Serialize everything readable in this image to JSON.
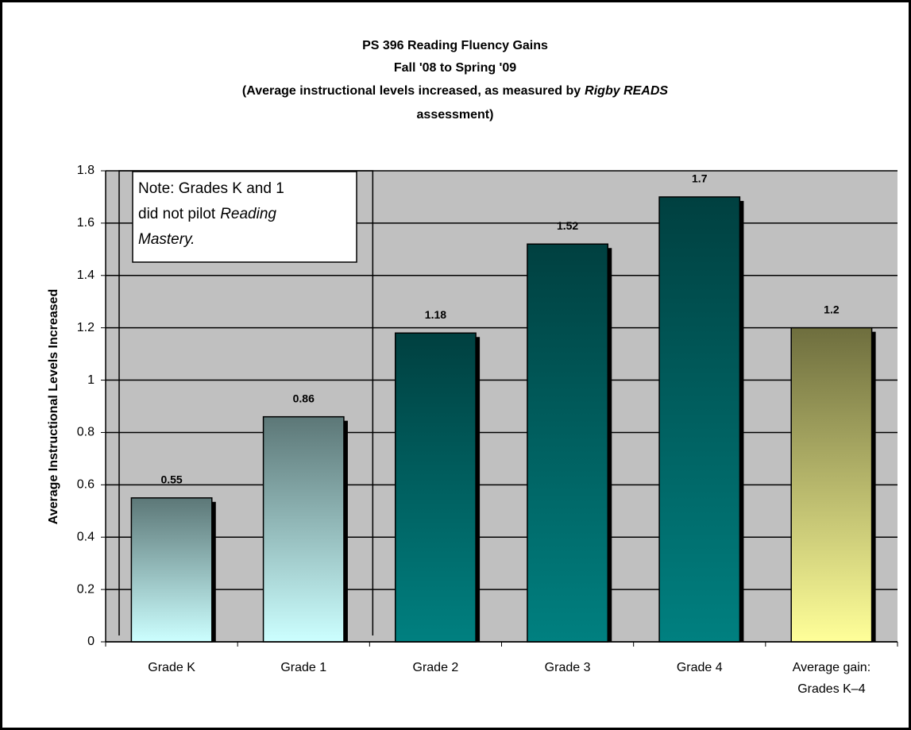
{
  "chart_data": {
    "type": "bar",
    "title": [
      "PS 396 Reading Fluency Gains",
      "Fall '08 to Spring '09"
    ],
    "subtitle": [
      "(Average instructional levels increased, as measured by",
      "Rigby READS",
      "assessment)"
    ],
    "y_label": "Average Instructional Levels Increased",
    "annotation": [
      "Note: Grades K and 1",
      "did not pilot",
      "Reading",
      "Mastery."
    ],
    "categories": [
      "Grade K",
      "Grade 1",
      "Grade 2",
      "Grade 3",
      "Grade 4",
      "Average gain:\nGrades K–4"
    ],
    "values": [
      0.55,
      0.86,
      1.18,
      1.52,
      1.7,
      1.2
    ],
    "colors": [
      [
        "#5c7777",
        "#ccffff"
      ],
      [
        "#5c7777",
        "#ccffff"
      ],
      [
        "#004040",
        "#008080"
      ],
      [
        "#004040",
        "#008080"
      ],
      [
        "#004040",
        "#008080"
      ],
      [
        "#6e6e3e",
        "#ffff99"
      ]
    ],
    "ylim": [
      0,
      1.8
    ],
    "yticks": [
      0,
      0.2,
      0.4,
      0.6,
      0.8,
      1,
      1.2,
      1.4,
      1.6,
      1.8
    ],
    "grid": true
  }
}
